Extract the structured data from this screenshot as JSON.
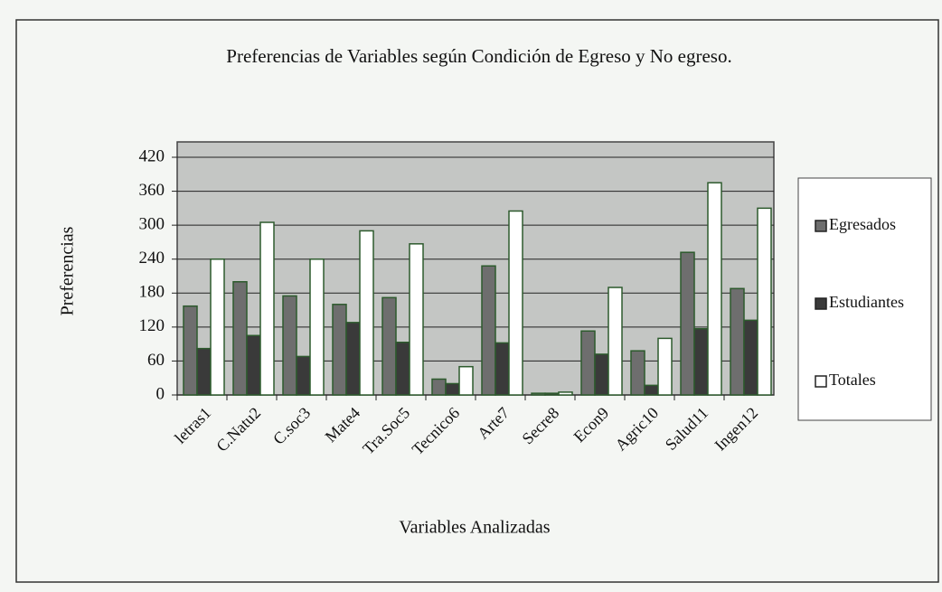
{
  "chart_data": {
    "type": "bar",
    "title": "Preferencias de Variables según Condición de Egreso y No egreso.",
    "xlabel": "Variables Analizadas",
    "ylabel": "Preferencias",
    "categories": [
      "letras1",
      "C.Natu2",
      "C.soc3",
      "Mate4",
      "Tra.Soc5",
      "Tecnico6",
      "Arte7",
      "Secre8",
      "Econ9",
      "Agric10",
      "Salud11",
      "Ingen12"
    ],
    "series": [
      {
        "name": "Egresados",
        "color": "#6e6e6e",
        "values": [
          157,
          200,
          175,
          160,
          172,
          28,
          228,
          3,
          113,
          78,
          252,
          188
        ]
      },
      {
        "name": "Estudiantes",
        "color": "#3a3a3a",
        "values": [
          82,
          105,
          68,
          128,
          93,
          20,
          92,
          3,
          72,
          17,
          117,
          132
        ]
      },
      {
        "name": "Totales",
        "color": "#ffffff",
        "values": [
          240,
          305,
          240,
          290,
          267,
          50,
          325,
          5,
          190,
          100,
          375,
          330
        ]
      }
    ],
    "ylim": [
      0,
      420
    ],
    "yticks": [
      0,
      60,
      120,
      180,
      240,
      300,
      360,
      420
    ],
    "grid": true,
    "legend": "right"
  }
}
